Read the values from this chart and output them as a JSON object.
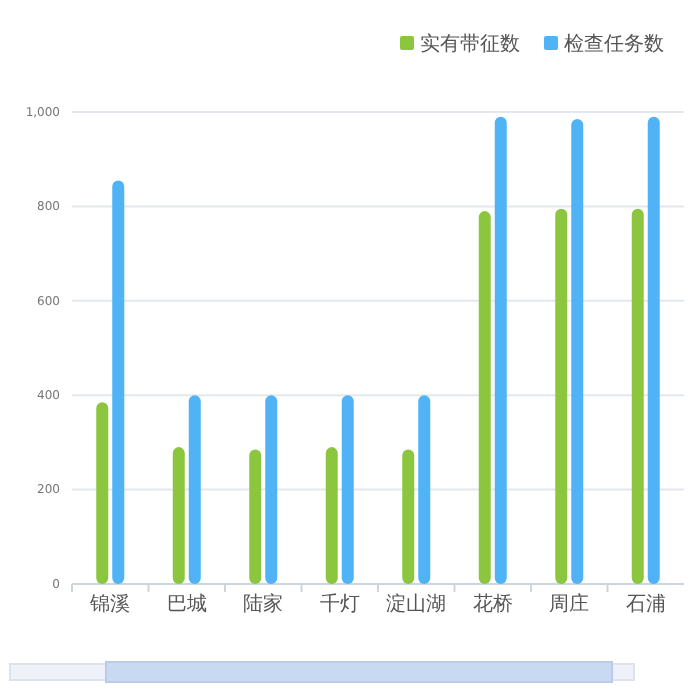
{
  "chart_data": {
    "type": "bar",
    "categories": [
      "锦溪",
      "巴城",
      "陆家",
      "千灯",
      "淀山湖",
      "花桥",
      "周庄",
      "石浦"
    ],
    "series": [
      {
        "name": "实有带征数",
        "color": "#8cc63f",
        "values": [
          385,
          290,
          285,
          290,
          285,
          790,
          795,
          795
        ]
      },
      {
        "name": "检查任务数",
        "color": "#4fb3f6",
        "values": [
          855,
          400,
          400,
          400,
          400,
          990,
          985,
          990
        ]
      }
    ],
    "ylim": [
      0,
      1000
    ],
    "yticks": [
      0,
      200,
      400,
      600,
      800,
      {
        "value": 1000,
        "label": "1,000"
      }
    ],
    "grid": "y",
    "legend": "top right"
  }
}
